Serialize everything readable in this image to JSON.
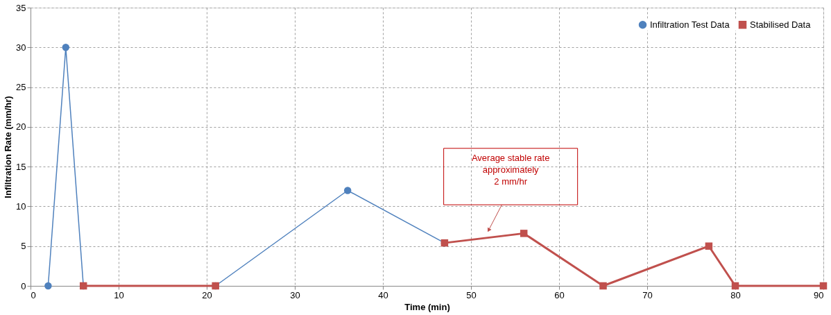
{
  "chart_data": {
    "type": "line",
    "xlabel": "Time (min)",
    "ylabel": "Infiltration Rate (mm/hr)",
    "series": [
      {
        "name": "Infiltration Test Data",
        "color": "#4f81bd",
        "marker": "circle",
        "x": [
          2,
          4,
          6,
          21,
          36,
          47
        ],
        "values": [
          0,
          30,
          0,
          0,
          12,
          5.4
        ]
      },
      {
        "name": "Stabilised Data",
        "color": "#c0504d",
        "marker": "square",
        "x": [
          6,
          21,
          34,
          47,
          56,
          65,
          77,
          80,
          90
        ],
        "values": [
          0,
          0,
          null,
          5.4,
          6.6,
          0,
          5,
          0,
          0
        ]
      }
    ],
    "xlim": [
      0,
      90
    ],
    "xticks": [
      0,
      10,
      20,
      30,
      40,
      50,
      60,
      70,
      80,
      90
    ],
    "ylim": [
      0,
      35
    ],
    "yticks": [
      0,
      5,
      10,
      15,
      20,
      25,
      30,
      35
    ],
    "grid": true,
    "legend": "top right",
    "line_style": "solid",
    "annotations": [
      "Average stable rate\napproximately\n2 mm/hr"
    ]
  }
}
